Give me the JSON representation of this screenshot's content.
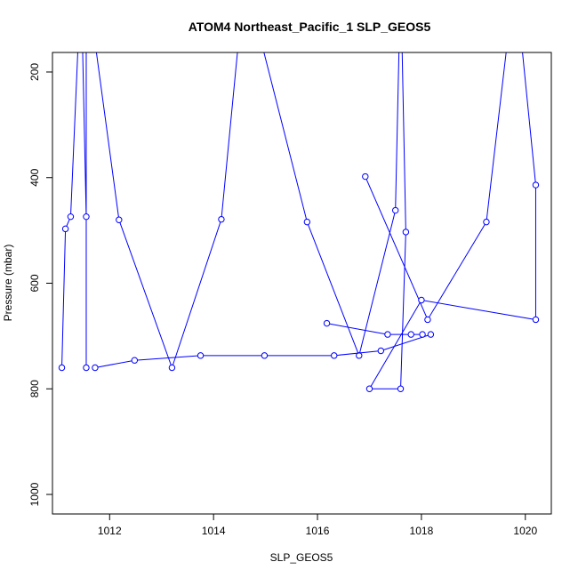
{
  "chart_data": {
    "type": "line",
    "title": "ATOM4 Northeast_Pacific_1 SLP_GEOS5",
    "xlabel": "SLP_GEOS5",
    "ylabel": "Pressure (mbar)",
    "xlim": [
      1010.9,
      1020.5
    ],
    "ylim": [
      1037,
      163
    ],
    "y_inverted": true,
    "grid": false,
    "legend": "none",
    "xticks": [
      1012,
      1014,
      1016,
      1018,
      1020
    ],
    "yticks": [
      200,
      400,
      600,
      800,
      1000
    ],
    "series": [
      {
        "color": "#0000ff",
        "marker": "open-circle",
        "points": [
          {
            "x": 1011.08,
            "y": 760
          },
          {
            "x": 1011.15,
            "y": 497
          },
          {
            "x": 1011.25,
            "y": 474
          },
          {
            "x": 1011.45,
            "y": 20
          },
          {
            "x": 1011.55,
            "y": 474
          },
          {
            "x": 1011.55,
            "y": 760
          },
          {
            "x": 1011.55,
            "y": 20
          },
          {
            "x": 1012.18,
            "y": 480
          },
          {
            "x": 1013.2,
            "y": 760
          },
          {
            "x": 1014.15,
            "y": 479
          },
          {
            "x": 1014.6,
            "y": 20
          },
          {
            "x": 1015.8,
            "y": 484
          },
          {
            "x": 1016.8,
            "y": 737
          },
          {
            "x": 1017.5,
            "y": 462
          },
          {
            "x": 1017.6,
            "y": 20
          },
          {
            "x": 1017.7,
            "y": 503
          },
          {
            "x": 1017.6,
            "y": 800
          },
          {
            "x": 1017.0,
            "y": 800
          },
          {
            "x": 1018.0,
            "y": 632
          },
          {
            "x": 1020.2,
            "y": 669
          },
          {
            "x": 1020.2,
            "y": 414
          },
          {
            "x": 1019.8,
            "y": 20
          },
          {
            "x": 1019.25,
            "y": 484
          },
          {
            "x": 1018.12,
            "y": 669
          },
          {
            "x": 1016.92,
            "y": 398
          }
        ]
      },
      {
        "color": "#0000ff",
        "marker": "open-circle",
        "points": [
          {
            "x": 1011.72,
            "y": 760
          },
          {
            "x": 1012.48,
            "y": 746
          },
          {
            "x": 1013.75,
            "y": 737
          },
          {
            "x": 1014.98,
            "y": 737
          },
          {
            "x": 1016.32,
            "y": 737
          },
          {
            "x": 1017.22,
            "y": 728
          },
          {
            "x": 1018.18,
            "y": 697
          }
        ]
      },
      {
        "color": "#0000ff",
        "marker": "open-circle",
        "points": [
          {
            "x": 1016.18,
            "y": 676
          },
          {
            "x": 1017.35,
            "y": 697
          },
          {
            "x": 1017.8,
            "y": 697
          },
          {
            "x": 1018.02,
            "y": 697
          }
        ]
      }
    ]
  }
}
